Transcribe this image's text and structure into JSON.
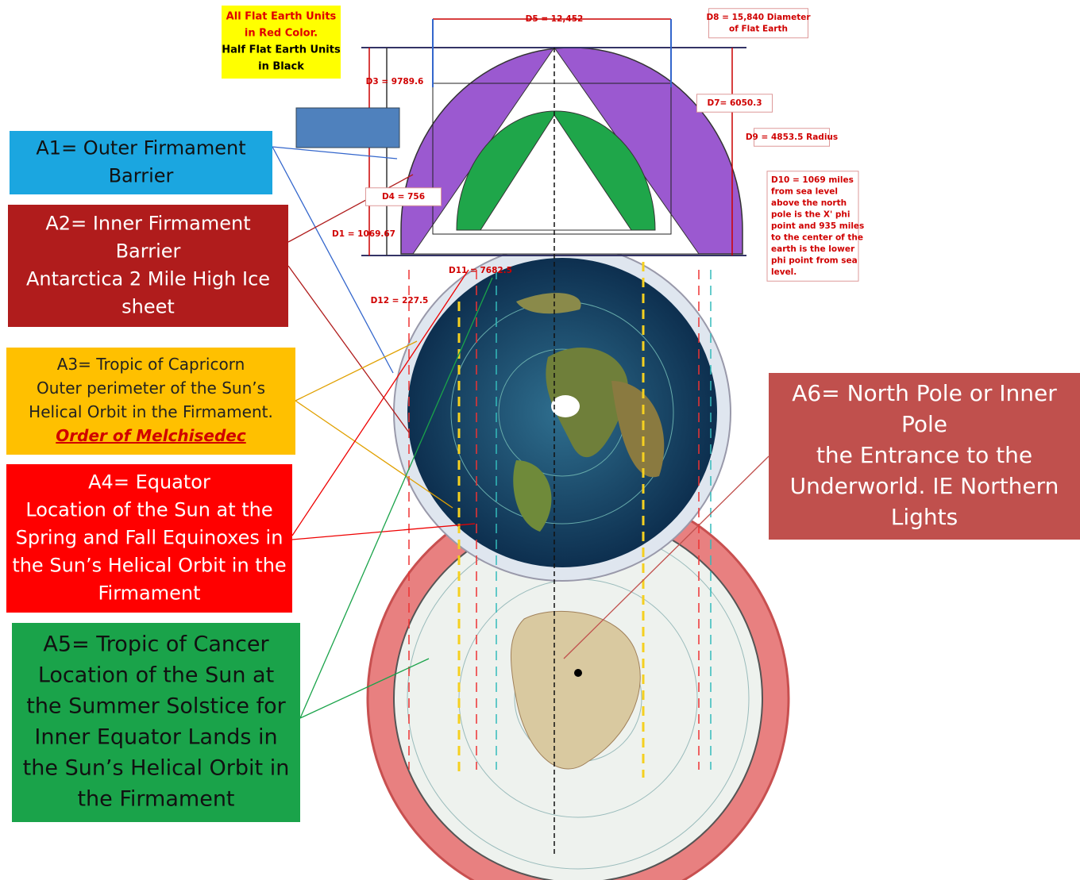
{
  "legend_note": {
    "lines": [
      "All Flat Earth Units",
      "in Red Color.",
      "Half Flat Earth Units",
      "in Black"
    ]
  },
  "callouts": [
    {
      "lines": [
        "A1= Outer Firmament",
        "Barrier"
      ]
    },
    {
      "lines": [
        "A2= Inner Firmament",
        "Barrier",
        "Antarctica 2 Mile High Ice",
        "sheet"
      ]
    },
    {
      "lines": [
        "A3= Tropic of Capricorn",
        "Outer perimeter of the Sun’s",
        "Helical Orbit in the Firmament."
      ],
      "link": "Order of Melchisedec"
    },
    {
      "lines": [
        "A4= Equator",
        "Location of the Sun at the",
        "Spring and Fall Equinoxes in",
        "the Sun’s Helical Orbit in the",
        "Firmament"
      ]
    },
    {
      "lines": [
        "A5= Tropic of Cancer",
        "Location of the Sun at",
        "the Summer Solstice for",
        "Inner Equator Lands in",
        "the Sun’s Helical Orbit in",
        "the Firmament"
      ]
    },
    {
      "lines": [
        "A6= North Pole or Inner",
        "Pole",
        "the Entrance to the",
        "Underworld. IE Northern",
        "Lights"
      ]
    }
  ],
  "dimensions": [
    {
      "lines": [
        "D5 = 12,452"
      ]
    },
    {
      "lines": [
        "D8 = 15,840 Diameter",
        "of Flat Earth"
      ]
    },
    {
      "lines": [
        "D3 = 9789.6"
      ]
    },
    {
      "lines": [
        "D7= 6050.3"
      ]
    },
    {
      "lines": [
        "D9 = 4853.5 Radius"
      ]
    },
    {
      "lines": [
        "D4 = 756"
      ]
    },
    {
      "lines": [
        "D1 = 1069.67"
      ]
    },
    {
      "lines": [
        "D12 = 227.5"
      ]
    },
    {
      "lines": [
        "D11 = 7682.5"
      ]
    },
    {
      "lines": [
        "D10 = 1069 miles",
        "from sea level",
        "above the north",
        "pole is the X' phi",
        "point and 935 miles",
        "to the center of the",
        "earth is the lower",
        "phi point from sea",
        "level."
      ]
    }
  ]
}
